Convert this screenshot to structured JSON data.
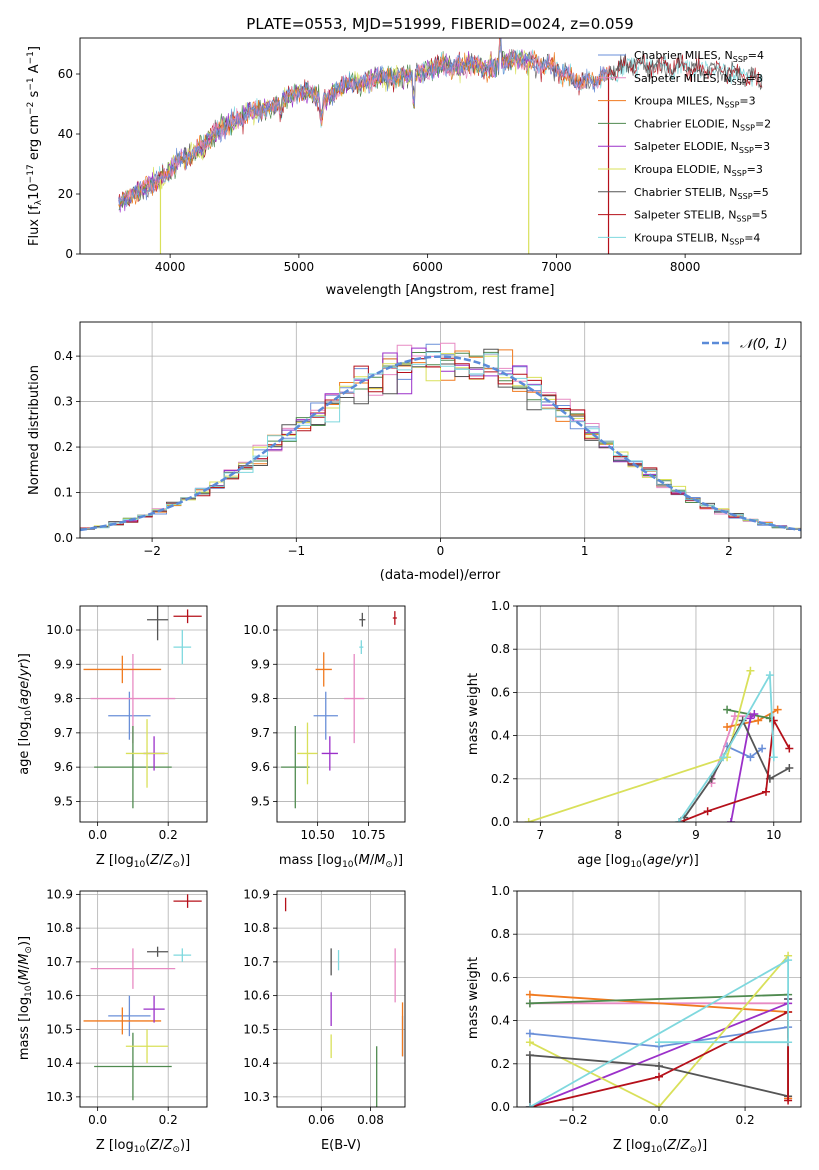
{
  "figure": {
    "title": "PLATE=0553, MJD=51999, FIBERID=0024, z=0.059"
  },
  "colors": {
    "Chabrier MILES": "#6a8fd8",
    "Salpeter MILES": "#e78ac3",
    "Kroupa MILES": "#f07a1f",
    "Chabrier ELODIE": "#4f8a4f",
    "Salpeter ELODIE": "#9b30c9",
    "Kroupa ELODIE": "#d9e05a",
    "Chabrier STELIB": "#555555",
    "Salpeter STELIB": "#b5101a",
    "Kroupa STELIB": "#7fd8de"
  },
  "chart_data": [
    {
      "id": "spectrum",
      "type": "line",
      "xlabel": "wavelength [Angstrom, rest frame]",
      "ylabel": "Flux [f_λ10^−17 erg cm^−2 s^−1 A^−1]",
      "xlim": [
        3300,
        8900
      ],
      "ylim": [
        0,
        72
      ],
      "xticks": [
        4000,
        5000,
        6000,
        7000,
        8000
      ],
      "yticks": [
        0,
        20,
        40,
        60
      ],
      "legend_position": "right",
      "legend": [
        {
          "name": "Chabrier MILES, N_SSP=4",
          "base": "Chabrier MILES",
          "sub": "SSP",
          "n": "4"
        },
        {
          "name": "Salpeter MILES, N_SSP=3",
          "base": "Salpeter MILES",
          "sub": "SSP",
          "n": "3"
        },
        {
          "name": "Kroupa MILES, N_SSP=3",
          "base": "Kroupa MILES",
          "sub": "SSP",
          "n": "3"
        },
        {
          "name": "Chabrier ELODIE, N_SSP=2",
          "base": "Chabrier ELODIE",
          "sub": "SSP",
          "n": "2"
        },
        {
          "name": "Salpeter ELODIE, N_SSP=3",
          "base": "Salpeter ELODIE",
          "sub": "SSP",
          "n": "3"
        },
        {
          "name": "Kroupa ELODIE, N_SSP=3",
          "base": "Kroupa ELODIE",
          "sub": "SSP",
          "n": "3"
        },
        {
          "name": "Chabrier STELIB, N_SSP=5",
          "base": "Chabrier STELIB",
          "sub": "SSP",
          "n": "5"
        },
        {
          "name": "Salpeter STELIB, N_SSP=5",
          "base": "Salpeter STELIB",
          "sub": "SSP",
          "n": "5"
        },
        {
          "name": "Kroupa STELIB, N_SSP=4",
          "base": "Kroupa STELIB",
          "sub": "SSP",
          "n": "4"
        }
      ],
      "anchor_x": [
        3600,
        3700,
        3800,
        3900,
        4000,
        4100,
        4200,
        4300,
        4400,
        4500,
        4600,
        4700,
        4800,
        4900,
        5000,
        5100,
        5200,
        5300,
        5400,
        5500,
        5600,
        5700,
        5800,
        5900,
        6000,
        6100,
        6200,
        6300,
        6400,
        6500,
        6600,
        6700,
        6800,
        6900,
        7000,
        7100,
        7200,
        7300,
        7400,
        7500,
        7600,
        7700,
        7800,
        7900,
        8000,
        8100,
        8200,
        8300,
        8400,
        8500,
        8600
      ],
      "anchor_y": [
        17,
        20,
        22,
        24,
        28,
        32,
        34,
        38,
        42,
        44,
        47,
        48,
        49,
        52,
        54,
        54,
        51,
        55,
        57,
        57,
        59,
        59,
        59,
        60,
        61,
        63,
        62,
        63,
        63,
        62,
        64,
        65,
        64,
        63,
        62,
        59,
        57,
        58,
        60,
        62,
        63,
        63,
        63,
        62,
        63,
        61,
        62,
        61,
        60,
        59,
        58
      ],
      "series_ranges": {
        "Chabrier MILES": [
          3600,
          7400
        ],
        "Salpeter MILES": [
          3600,
          7400
        ],
        "Kroupa MILES": [
          3600,
          7400
        ],
        "Chabrier ELODIE": [
          3600,
          6800
        ],
        "Salpeter ELODIE": [
          3600,
          6800
        ],
        "Kroupa ELODIE": [
          3600,
          6800
        ],
        "Chabrier STELIB": [
          3600,
          8600
        ],
        "Salpeter STELIB": [
          3600,
          8600
        ],
        "Kroupa STELIB": [
          3600,
          8600
        ]
      }
    },
    {
      "id": "residuals",
      "type": "histogram",
      "xlabel": "(data-model)/error",
      "ylabel": "Normed distribution",
      "xlim": [
        -2.5,
        2.5
      ],
      "ylim": [
        0,
        0.475
      ],
      "xticks": [
        -2,
        -1,
        0,
        1,
        2
      ],
      "yticks": [
        0.0,
        0.1,
        0.2,
        0.3,
        0.4
      ],
      "grid": true,
      "bin_width": 0.1,
      "legend_position": "top-right",
      "reference_curve": {
        "name": "𝒩(0, 1)",
        "mean": 0,
        "sigma": 1,
        "color": "#5b8bd8",
        "style": "dashed"
      }
    },
    {
      "id": "age_vs_Z",
      "type": "errorbar",
      "xlabel": "Z [log10(Z/Z⊙)]",
      "ylabel": "age  [log10(age/yr)]",
      "xlim": [
        -0.05,
        0.31
      ],
      "ylim": [
        9.44,
        10.07
      ],
      "xticks": [
        0.0,
        0.2
      ],
      "yticks": [
        9.5,
        9.6,
        9.7,
        9.8,
        9.9,
        10.0
      ],
      "grid": true,
      "points": [
        {
          "series": "Chabrier MILES",
          "x": 0.09,
          "xerr": 0.06,
          "y": 9.75,
          "yerr": 0.07
        },
        {
          "series": "Salpeter MILES",
          "x": 0.1,
          "xerr": 0.12,
          "y": 9.8,
          "yerr": 0.13
        },
        {
          "series": "Kroupa MILES",
          "x": 0.07,
          "xerr": 0.11,
          "y": 9.885,
          "yerr": 0.04
        },
        {
          "series": "Chabrier ELODIE",
          "x": 0.1,
          "xerr": 0.11,
          "y": 9.6,
          "yerr": 0.12
        },
        {
          "series": "Salpeter ELODIE",
          "x": 0.16,
          "xerr": 0.03,
          "y": 9.64,
          "yerr": 0.05
        },
        {
          "series": "Kroupa ELODIE",
          "x": 0.14,
          "xerr": 0.06,
          "y": 9.64,
          "yerr": 0.1
        },
        {
          "series": "Chabrier STELIB",
          "x": 0.17,
          "xerr": 0.03,
          "y": 10.03,
          "yerr": 0.06
        },
        {
          "series": "Salpeter STELIB",
          "x": 0.255,
          "xerr": 0.04,
          "y": 10.04,
          "yerr": 0.02
        },
        {
          "series": "Kroupa STELIB",
          "x": 0.24,
          "xerr": 0.025,
          "y": 9.95,
          "yerr": 0.05
        }
      ]
    },
    {
      "id": "age_vs_mass",
      "type": "errorbar",
      "xlabel": "mass [log10(M/M⊙)]",
      "ylabel": "",
      "xlim": [
        10.3,
        10.93
      ],
      "ylim": [
        9.44,
        10.07
      ],
      "xticks": [
        10.5,
        10.75
      ],
      "yticks": [
        9.5,
        9.6,
        9.7,
        9.8,
        9.9,
        10.0
      ],
      "grid": true,
      "points": [
        {
          "series": "Chabrier MILES",
          "x": 10.54,
          "xerr": 0.06,
          "y": 9.75,
          "yerr": 0.07
        },
        {
          "series": "Salpeter MILES",
          "x": 10.68,
          "xerr": 0.05,
          "y": 9.8,
          "yerr": 0.13
        },
        {
          "series": "Kroupa MILES",
          "x": 10.53,
          "xerr": 0.04,
          "y": 9.885,
          "yerr": 0.05
        },
        {
          "series": "Chabrier ELODIE",
          "x": 10.39,
          "xerr": 0.07,
          "y": 9.6,
          "yerr": 0.12
        },
        {
          "series": "Salpeter ELODIE",
          "x": 10.56,
          "xerr": 0.04,
          "y": 9.64,
          "yerr": 0.05
        },
        {
          "series": "Kroupa ELODIE",
          "x": 10.45,
          "xerr": 0.05,
          "y": 9.64,
          "yerr": 0.09
        },
        {
          "series": "Chabrier STELIB",
          "x": 10.72,
          "xerr": 0.015,
          "y": 10.03,
          "yerr": 0.02
        },
        {
          "series": "Salpeter STELIB",
          "x": 10.88,
          "xerr": 0.01,
          "y": 10.035,
          "yerr": 0.02
        },
        {
          "series": "Kroupa STELIB",
          "x": 10.715,
          "xerr": 0.01,
          "y": 9.95,
          "yerr": 0.02
        }
      ]
    },
    {
      "id": "mass_weight_vs_age",
      "type": "line",
      "xlabel": "age  [log10(age/yr)]",
      "ylabel": "mass weight",
      "xlim": [
        6.7,
        10.35
      ],
      "ylim": [
        0,
        1.0
      ],
      "xticks": [
        7,
        8,
        9,
        10
      ],
      "yticks": [
        0.0,
        0.2,
        0.4,
        0.6,
        0.8,
        1.0
      ],
      "grid": true,
      "series": [
        {
          "name": "Chabrier MILES",
          "x": [
            9.4,
            9.7,
            9.85
          ],
          "y": [
            0.35,
            0.3,
            0.34
          ]
        },
        {
          "name": "Salpeter MILES",
          "x": [
            9.2,
            9.5,
            9.7
          ],
          "y": [
            0.18,
            0.49,
            0.49
          ]
        },
        {
          "name": "Kroupa MILES",
          "x": [
            9.4,
            9.8,
            10.05
          ],
          "y": [
            0.44,
            0.47,
            0.52
          ]
        },
        {
          "name": "Chabrier ELODIE",
          "x": [
            9.4,
            9.95
          ],
          "y": [
            0.52,
            0.48
          ]
        },
        {
          "name": "Salpeter ELODIE",
          "x": [
            9.45,
            9.7,
            9.75
          ],
          "y": [
            0.0,
            0.48,
            0.5
          ]
        },
        {
          "name": "Kroupa ELODIE",
          "x": [
            6.85,
            9.4,
            9.7
          ],
          "y": [
            0.0,
            0.3,
            0.7
          ]
        },
        {
          "name": "Chabrier STELIB",
          "x": [
            8.85,
            9.2,
            9.6,
            9.95,
            10.2
          ],
          "y": [
            0.02,
            0.2,
            0.47,
            0.2,
            0.25
          ]
        },
        {
          "name": "Salpeter STELIB",
          "x": [
            8.8,
            9.15,
            9.9,
            10.0,
            10.2
          ],
          "y": [
            0.0,
            0.05,
            0.14,
            0.47,
            0.34
          ]
        },
        {
          "name": "Kroupa STELIB",
          "x": [
            8.78,
            9.35,
            9.95,
            10.0
          ],
          "y": [
            0.0,
            0.3,
            0.68,
            0.3
          ]
        }
      ]
    },
    {
      "id": "mass_vs_Z",
      "type": "errorbar",
      "xlabel": "Z [log10(Z/Z⊙)]",
      "ylabel": "mass [log10(M/M⊙)]",
      "xlim": [
        -0.05,
        0.31
      ],
      "ylim": [
        10.27,
        10.91
      ],
      "xticks": [
        0.0,
        0.2
      ],
      "yticks": [
        10.3,
        10.4,
        10.5,
        10.6,
        10.7,
        10.8,
        10.9
      ],
      "grid": true,
      "points": [
        {
          "series": "Chabrier MILES",
          "x": 0.09,
          "xerr": 0.06,
          "y": 10.54,
          "yerr": 0.06
        },
        {
          "series": "Salpeter MILES",
          "x": 0.1,
          "xerr": 0.12,
          "y": 10.68,
          "yerr": 0.06
        },
        {
          "series": "Kroupa MILES",
          "x": 0.07,
          "xerr": 0.11,
          "y": 10.525,
          "yerr": 0.04
        },
        {
          "series": "Chabrier ELODIE",
          "x": 0.1,
          "xerr": 0.11,
          "y": 10.39,
          "yerr": 0.1
        },
        {
          "series": "Salpeter ELODIE",
          "x": 0.16,
          "xerr": 0.03,
          "y": 10.56,
          "yerr": 0.04
        },
        {
          "series": "Kroupa ELODIE",
          "x": 0.14,
          "xerr": 0.06,
          "y": 10.45,
          "yerr": 0.05
        },
        {
          "series": "Chabrier STELIB",
          "x": 0.17,
          "xerr": 0.03,
          "y": 10.73,
          "yerr": 0.015
        },
        {
          "series": "Salpeter STELIB",
          "x": 0.255,
          "xerr": 0.04,
          "y": 10.88,
          "yerr": 0.02
        },
        {
          "series": "Kroupa STELIB",
          "x": 0.24,
          "xerr": 0.025,
          "y": 10.72,
          "yerr": 0.02
        }
      ]
    },
    {
      "id": "mass_vs_ebv",
      "type": "errorbar",
      "xlabel": "E(B-V)",
      "ylabel": "",
      "xlim": [
        0.042,
        0.094
      ],
      "ylim": [
        10.27,
        10.91
      ],
      "xticks": [
        0.06,
        0.08
      ],
      "yticks": [
        10.3,
        10.4,
        10.5,
        10.6,
        10.7,
        10.8,
        10.9
      ],
      "grid": true,
      "points": [
        {
          "series": "Chabrier MILES",
          "x": 0.093,
          "xerr": 0.0,
          "y": 10.48,
          "yerr": 0.06
        },
        {
          "series": "Salpeter MILES",
          "x": 0.09,
          "xerr": 0.0,
          "y": 10.66,
          "yerr": 0.08
        },
        {
          "series": "Kroupa MILES",
          "x": 0.093,
          "xerr": 0.0,
          "y": 10.5,
          "yerr": 0.08
        },
        {
          "series": "Chabrier ELODIE",
          "x": 0.0825,
          "xerr": 0.0,
          "y": 10.33,
          "yerr": 0.12
        },
        {
          "series": "Salpeter ELODIE",
          "x": 0.064,
          "xerr": 0.0,
          "y": 10.56,
          "yerr": 0.05
        },
        {
          "series": "Kroupa ELODIE",
          "x": 0.064,
          "xerr": 0.0,
          "y": 10.45,
          "yerr": 0.035
        },
        {
          "series": "Chabrier STELIB",
          "x": 0.064,
          "xerr": 0.0,
          "y": 10.7,
          "yerr": 0.04
        },
        {
          "series": "Salpeter STELIB",
          "x": 0.0455,
          "xerr": 0.0,
          "y": 10.87,
          "yerr": 0.02
        },
        {
          "series": "Kroupa STELIB",
          "x": 0.067,
          "xerr": 0.0,
          "y": 10.705,
          "yerr": 0.03
        }
      ]
    },
    {
      "id": "mass_weight_vs_Z",
      "type": "line",
      "xlabel": "Z [log10(Z/Z⊙)]",
      "ylabel": "mass weight",
      "xlim": [
        -0.33,
        0.33
      ],
      "ylim": [
        0,
        1.0
      ],
      "xticks": [
        -0.2,
        0.0,
        0.2
      ],
      "yticks": [
        0.0,
        0.2,
        0.4,
        0.6,
        0.8,
        1.0
      ],
      "grid": true,
      "series": [
        {
          "name": "Chabrier MILES",
          "x": [
            -0.3,
            0.0,
            0.3
          ],
          "y": [
            0.34,
            0.28,
            0.37
          ]
        },
        {
          "name": "Salpeter MILES",
          "x": [
            -0.3,
            0.3,
            0.3
          ],
          "y": [
            0.48,
            0.48,
            0.04
          ]
        },
        {
          "name": "Kroupa MILES",
          "x": [
            -0.3,
            0.3,
            0.3
          ],
          "y": [
            0.52,
            0.44,
            0.04
          ]
        },
        {
          "name": "Chabrier ELODIE",
          "x": [
            -0.3,
            0.3
          ],
          "y": [
            0.48,
            0.52
          ]
        },
        {
          "name": "Salpeter ELODIE",
          "x": [
            -0.3,
            0.3,
            0.3
          ],
          "y": [
            0.0,
            0.48,
            0.5
          ]
        },
        {
          "name": "Kroupa ELODIE",
          "x": [
            -0.3,
            0.0,
            0.3
          ],
          "y": [
            0.3,
            0.0,
            0.7
          ]
        },
        {
          "name": "Chabrier STELIB",
          "x": [
            -0.3,
            -0.3,
            0.0,
            0.3,
            0.3
          ],
          "y": [
            0.0,
            0.24,
            0.19,
            0.05,
            0.5
          ]
        },
        {
          "name": "Salpeter STELIB",
          "x": [
            -0.3,
            0.0,
            0.3,
            0.3
          ],
          "y": [
            0.0,
            0.14,
            0.44,
            0.03
          ]
        },
        {
          "name": "Kroupa STELIB",
          "x": [
            -0.3,
            0.3,
            0.3,
            0.0
          ],
          "y": [
            0.0,
            0.68,
            0.3,
            0.3
          ]
        }
      ]
    }
  ]
}
